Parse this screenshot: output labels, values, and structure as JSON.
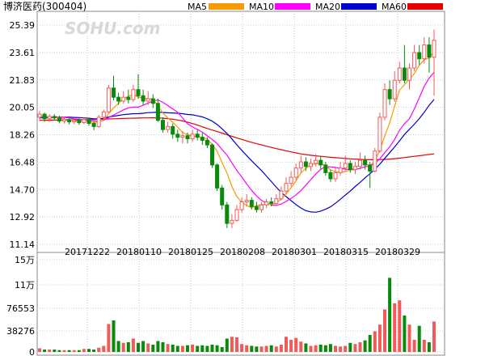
{
  "chart_data": {
    "type": "candlestick",
    "title": "博济医药(300404)",
    "watermark": "SOHU.com",
    "legend": [
      {
        "name": "MA5",
        "color": "#f59a00"
      },
      {
        "name": "MA10",
        "color": "#ff00ff"
      },
      {
        "name": "MA20",
        "color": "#0000cc"
      },
      {
        "name": "MA60",
        "color": "#e80000"
      }
    ],
    "price_axis": {
      "ticks": [
        "25.39",
        "23.61",
        "21.83",
        "20.05",
        "18.26",
        "16.48",
        "14.70",
        "12.92",
        "11.14"
      ],
      "ylim": [
        11.14,
        25.39
      ]
    },
    "volume_axis": {
      "ticks": [
        "15万",
        "11万",
        "76553",
        "38276",
        "0"
      ],
      "ylim": [
        0,
        153106
      ]
    },
    "date_labels": [
      "20171222",
      "20180110",
      "20180125",
      "20180208",
      "20180301",
      "20180315",
      "20180329"
    ],
    "up_color": "#f05a5a",
    "down_color": "#0a8a0a",
    "candles": [
      [
        19.4,
        19.6,
        19.8,
        19.2
      ],
      [
        19.6,
        19.3,
        19.7,
        19.1
      ],
      [
        19.3,
        19.45,
        19.6,
        19.1
      ],
      [
        19.45,
        19.35,
        19.6,
        19.2
      ],
      [
        19.35,
        19.15,
        19.5,
        19.0
      ],
      [
        19.15,
        19.25,
        19.4,
        19.0
      ],
      [
        19.25,
        19.1,
        19.35,
        18.95
      ],
      [
        19.1,
        19.2,
        19.3,
        18.95
      ],
      [
        19.2,
        19.05,
        19.4,
        18.9
      ],
      [
        19.05,
        19.25,
        19.4,
        18.95
      ],
      [
        19.25,
        19.0,
        19.35,
        18.85
      ],
      [
        19.0,
        18.8,
        19.1,
        18.55
      ],
      [
        18.8,
        19.4,
        19.55,
        18.7
      ],
      [
        19.4,
        19.75,
        19.9,
        19.25
      ],
      [
        19.75,
        21.3,
        21.5,
        19.7
      ],
      [
        21.3,
        20.7,
        22.1,
        20.5
      ],
      [
        20.7,
        20.45,
        21.0,
        20.2
      ],
      [
        20.45,
        20.7,
        21.1,
        20.3
      ],
      [
        20.7,
        20.55,
        21.2,
        20.3
      ],
      [
        20.55,
        21.2,
        21.5,
        20.4
      ],
      [
        21.2,
        20.8,
        22.2,
        20.6
      ],
      [
        20.8,
        20.45,
        21.2,
        20.2
      ],
      [
        20.45,
        20.6,
        21.1,
        20.2
      ],
      [
        20.6,
        20.3,
        20.9,
        20.0
      ],
      [
        20.3,
        19.2,
        20.6,
        19.1
      ],
      [
        19.2,
        18.6,
        19.4,
        18.4
      ],
      [
        18.6,
        18.8,
        19.1,
        18.4
      ],
      [
        18.8,
        18.3,
        19.0,
        18.0
      ],
      [
        18.3,
        18.1,
        18.6,
        17.8
      ],
      [
        18.1,
        18.2,
        18.5,
        17.7
      ],
      [
        18.2,
        18.0,
        18.4,
        17.7
      ],
      [
        18.0,
        18.3,
        18.6,
        17.8
      ],
      [
        18.3,
        18.1,
        18.6,
        17.9
      ],
      [
        18.1,
        17.9,
        18.4,
        17.6
      ],
      [
        17.9,
        17.6,
        18.1,
        17.4
      ],
      [
        17.6,
        16.3,
        17.7,
        16.1
      ],
      [
        16.3,
        14.8,
        16.4,
        14.6
      ],
      [
        14.8,
        13.7,
        15.0,
        13.4
      ],
      [
        13.7,
        12.5,
        13.9,
        12.2
      ],
      [
        12.5,
        12.7,
        13.1,
        12.2
      ],
      [
        12.7,
        13.4,
        13.7,
        12.6
      ],
      [
        13.4,
        13.9,
        14.2,
        13.2
      ],
      [
        13.9,
        14.0,
        14.4,
        13.6
      ],
      [
        14.0,
        13.6,
        14.2,
        13.4
      ],
      [
        13.6,
        13.4,
        13.9,
        13.2
      ],
      [
        13.4,
        13.7,
        13.9,
        13.2
      ],
      [
        13.7,
        13.9,
        14.1,
        13.5
      ],
      [
        13.9,
        13.8,
        14.2,
        13.6
      ],
      [
        13.8,
        14.1,
        14.4,
        13.7
      ],
      [
        14.1,
        14.6,
        14.9,
        14.0
      ],
      [
        14.6,
        15.1,
        15.5,
        14.4
      ],
      [
        15.1,
        15.5,
        15.9,
        14.9
      ],
      [
        15.5,
        16.1,
        16.4,
        15.3
      ],
      [
        16.1,
        16.5,
        16.9,
        15.8
      ],
      [
        16.5,
        16.2,
        16.8,
        15.9
      ],
      [
        16.2,
        16.4,
        16.7,
        15.9
      ],
      [
        16.4,
        16.6,
        17.0,
        16.2
      ],
      [
        16.6,
        16.3,
        16.9,
        16.0
      ],
      [
        16.3,
        15.8,
        16.5,
        15.6
      ],
      [
        15.8,
        15.4,
        16.0,
        15.2
      ],
      [
        15.4,
        15.8,
        16.1,
        15.2
      ],
      [
        15.8,
        16.1,
        16.5,
        15.6
      ],
      [
        16.1,
        16.4,
        16.9,
        15.9
      ],
      [
        16.4,
        16.0,
        16.6,
        15.8
      ],
      [
        16.0,
        16.2,
        16.5,
        15.7
      ],
      [
        16.2,
        16.6,
        17.1,
        16.0
      ],
      [
        16.6,
        16.3,
        16.9,
        16.0
      ],
      [
        16.3,
        15.9,
        16.5,
        14.8
      ],
      [
        15.9,
        17.2,
        17.4,
        15.8
      ],
      [
        17.2,
        19.4,
        19.7,
        17.1
      ],
      [
        19.4,
        21.2,
        21.6,
        19.2
      ],
      [
        21.2,
        20.6,
        21.8,
        20.2
      ],
      [
        20.6,
        21.8,
        22.4,
        20.4
      ],
      [
        21.8,
        22.6,
        23.0,
        21.6
      ],
      [
        22.6,
        21.8,
        24.1,
        21.6
      ],
      [
        21.8,
        22.6,
        22.9,
        21.2
      ],
      [
        22.6,
        23.6,
        24.1,
        22.4
      ],
      [
        23.6,
        23.2,
        24.1,
        22.8
      ],
      [
        23.2,
        24.1,
        24.6,
        22.9
      ],
      [
        24.1,
        23.3,
        24.6,
        22.3
      ],
      [
        23.3,
        24.4,
        25.1,
        20.8
      ]
    ],
    "ma5": [
      19.5,
      19.48,
      19.43,
      19.39,
      19.37,
      19.28,
      19.24,
      19.17,
      19.15,
      19.13,
      19.12,
      19.06,
      19.1,
      19.24,
      19.63,
      20.01,
      20.3,
      20.6,
      20.75,
      20.88,
      20.71,
      20.65,
      20.6,
      20.58,
      20.15,
      19.68,
      19.36,
      19.08,
      18.76,
      18.4,
      18.28,
      18.18,
      18.14,
      18.1,
      17.98,
      17.64,
      17.2,
      16.46,
      15.78,
      14.9,
      14.24,
      13.88,
      13.66,
      13.52,
      13.66,
      13.72,
      13.74,
      13.72,
      13.82,
      14.08,
      14.42,
      14.82,
      15.26,
      15.78,
      16.1,
      16.28,
      16.38,
      16.38,
      16.26,
      15.98,
      15.86,
      15.82,
      15.88,
      15.96,
      16.14,
      16.34,
      16.36,
      16.24,
      16.54,
      17.26,
      18.18,
      19.04,
      20.12,
      21.16,
      21.52,
      21.88,
      22.24,
      22.78,
      23.14,
      23.24,
      23.7
    ],
    "ma10": [
      19.45,
      19.45,
      19.44,
      19.42,
      19.41,
      19.39,
      19.36,
      19.3,
      19.27,
      19.23,
      19.2,
      19.16,
      19.14,
      19.2,
      19.38,
      19.55,
      19.71,
      19.88,
      20.01,
      20.06,
      20.06,
      20.18,
      20.32,
      20.45,
      20.52,
      20.37,
      20.16,
      19.94,
      19.72,
      19.35,
      18.98,
      18.77,
      18.61,
      18.43,
      18.19,
      17.96,
      17.69,
      17.3,
      16.94,
      16.44,
      15.94,
      15.52,
      15.06,
      14.65,
      14.28,
      14.0,
      13.81,
      13.69,
      13.67,
      13.76,
      13.93,
      14.12,
      14.36,
      14.64,
      14.99,
      15.35,
      15.7,
      16.02,
      16.19,
      16.18,
      16.14,
      16.08,
      16.03,
      15.99,
      16.0,
      16.08,
      16.18,
      16.23,
      16.41,
      16.7,
      17.11,
      17.47,
      17.96,
      18.56,
      18.98,
      19.3,
      19.95,
      20.67,
      21.41,
      21.94,
      22.32
    ],
    "ma20": [
      19.36,
      19.37,
      19.38,
      19.39,
      19.4,
      19.4,
      19.4,
      19.39,
      19.38,
      19.36,
      19.34,
      19.3,
      19.3,
      19.32,
      19.42,
      19.47,
      19.52,
      19.57,
      19.6,
      19.63,
      19.63,
      19.66,
      19.7,
      19.71,
      19.73,
      19.71,
      19.69,
      19.68,
      19.66,
      19.63,
      19.58,
      19.56,
      19.49,
      19.42,
      19.3,
      19.15,
      18.93,
      18.65,
      18.35,
      17.99,
      17.61,
      17.25,
      16.91,
      16.57,
      16.25,
      15.94,
      15.58,
      15.22,
      14.85,
      14.52,
      14.24,
      13.98,
      13.72,
      13.5,
      13.33,
      13.25,
      13.23,
      13.3,
      13.42,
      13.58,
      13.81,
      14.07,
      14.34,
      14.6,
      14.9,
      15.17,
      15.46,
      15.73,
      16.01,
      16.35,
      16.73,
      17.1,
      17.47,
      17.87,
      18.28,
      18.62,
      18.95,
      19.31,
      19.72,
      20.18,
      20.56
    ],
    "ma60": [
      19.2,
      19.2,
      19.21,
      19.21,
      19.22,
      19.22,
      19.23,
      19.23,
      19.24,
      19.25,
      19.25,
      19.26,
      19.27,
      19.28,
      19.29,
      19.3,
      19.31,
      19.32,
      19.33,
      19.34,
      19.35,
      19.36,
      19.36,
      19.37,
      19.36,
      19.34,
      19.31,
      19.27,
      19.22,
      19.16,
      19.08,
      18.99,
      18.89,
      18.78,
      18.67,
      18.57,
      18.47,
      18.37,
      18.26,
      18.16,
      18.06,
      17.96,
      17.86,
      17.77,
      17.68,
      17.6,
      17.52,
      17.44,
      17.36,
      17.29,
      17.22,
      17.15,
      17.08,
      17.02,
      16.97,
      16.93,
      16.89,
      16.86,
      16.83,
      16.8,
      16.77,
      16.75,
      16.72,
      16.7,
      16.68,
      16.66,
      16.65,
      16.64,
      16.64,
      16.65,
      16.66,
      16.68,
      16.71,
      16.74,
      16.78,
      16.82,
      16.86,
      16.9,
      16.94,
      16.98,
      17.02
    ],
    "volumes": [
      6000,
      4000,
      4000,
      4000,
      3000,
      3000,
      3000,
      3000,
      3000,
      5000,
      5000,
      4000,
      7000,
      10000,
      46000,
      52000,
      18000,
      15000,
      16000,
      22000,
      15000,
      18000,
      14000,
      12000,
      18000,
      16000,
      13000,
      12000,
      10000,
      10000,
      11000,
      12000,
      10000,
      11000,
      10000,
      12000,
      11000,
      8000,
      22000,
      25000,
      24000,
      13000,
      11000,
      10000,
      9000,
      9000,
      10000,
      11000,
      9000,
      12000,
      25000,
      20000,
      23000,
      17000,
      14000,
      10000,
      11000,
      12000,
      11000,
      13000,
      10000,
      9000,
      10000,
      15000,
      13000,
      16000,
      19000,
      28000,
      34000,
      45000,
      70000,
      122000,
      80000,
      85000,
      60000,
      45000,
      20000,
      43000,
      20000,
      16000,
      50000
    ]
  }
}
